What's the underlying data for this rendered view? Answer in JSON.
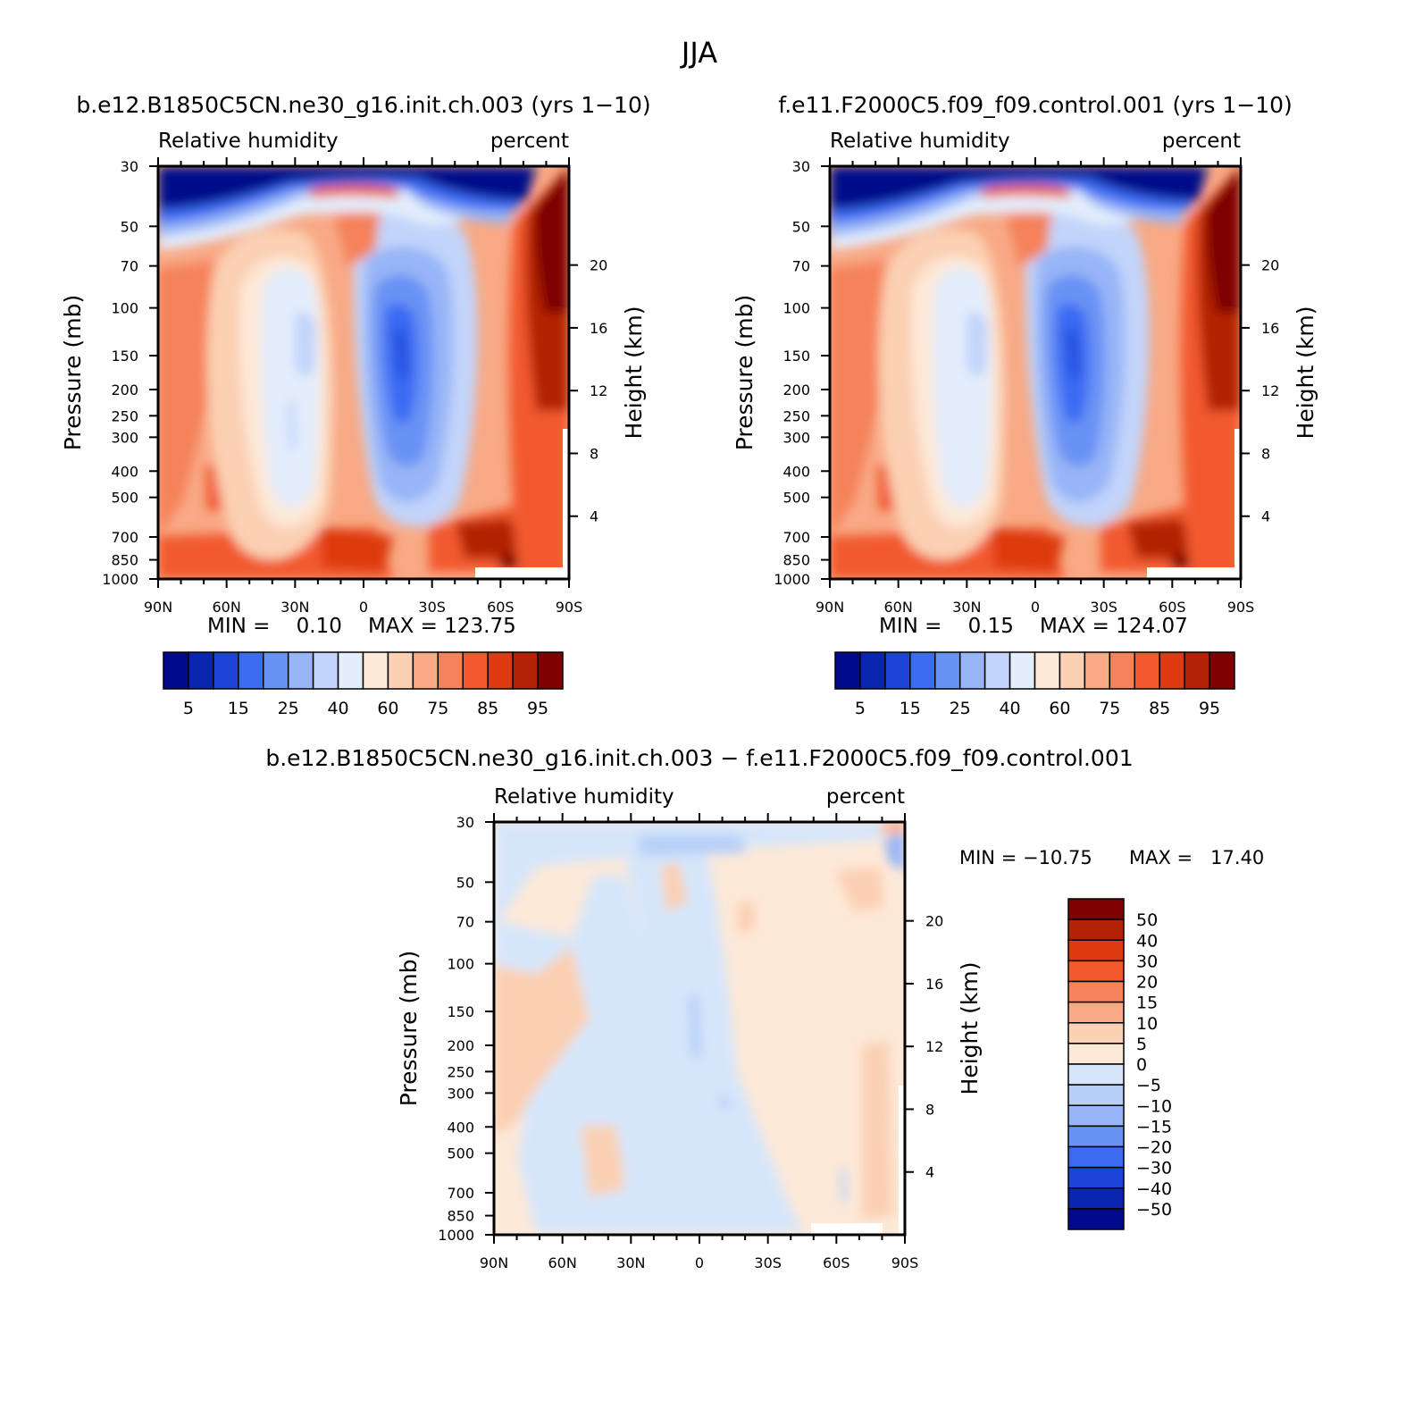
{
  "figure_title": "JJA",
  "chart_data": [
    {
      "type": "heatmap",
      "panel": "top-left",
      "title": "b.e12.B1850C5CN.ne30_g16.init.ch.003 (yrs 1−10)",
      "variable": "Relative humidity",
      "units": "percent",
      "ylabel": "Pressure (mb)",
      "y2label": "Height (km)",
      "x_ticks": [
        "90N",
        "60N",
        "30N",
        "0",
        "30S",
        "60S",
        "90S"
      ],
      "y_ticks": [
        "30",
        "50",
        "70",
        "100",
        "150",
        "200",
        "250",
        "300",
        "400",
        "500",
        "700",
        "850",
        "1000"
      ],
      "y_tick_values": [
        30,
        50,
        70,
        100,
        150,
        200,
        250,
        300,
        400,
        500,
        700,
        850,
        1000
      ],
      "y2_ticks": [
        "20",
        "16",
        "12",
        "8",
        "4"
      ],
      "y2_tick_values": [
        20,
        16,
        12,
        8,
        4
      ],
      "ylim": [
        30,
        1000
      ],
      "min_text": "MIN =    0.10",
      "max_text": "MAX = 123.75",
      "colorbar_labels": [
        "5",
        "15",
        "25",
        "40",
        "60",
        "75",
        "85",
        "95"
      ]
    },
    {
      "type": "heatmap",
      "panel": "top-right",
      "title": "f.e11.F2000C5.f09_f09.control.001 (yrs 1−10)",
      "variable": "Relative humidity",
      "units": "percent",
      "ylabel": "Pressure (mb)",
      "y2label": "Height (km)",
      "x_ticks": [
        "90N",
        "60N",
        "30N",
        "0",
        "30S",
        "60S",
        "90S"
      ],
      "y_ticks": [
        "30",
        "50",
        "70",
        "100",
        "150",
        "200",
        "250",
        "300",
        "400",
        "500",
        "700",
        "850",
        "1000"
      ],
      "y_tick_values": [
        30,
        50,
        70,
        100,
        150,
        200,
        250,
        300,
        400,
        500,
        700,
        850,
        1000
      ],
      "y2_ticks": [
        "20",
        "16",
        "12",
        "8",
        "4"
      ],
      "y2_tick_values": [
        20,
        16,
        12,
        8,
        4
      ],
      "ylim": [
        30,
        1000
      ],
      "min_text": "MIN =    0.15",
      "max_text": "MAX = 124.07",
      "colorbar_labels": [
        "5",
        "15",
        "25",
        "40",
        "60",
        "75",
        "85",
        "95"
      ]
    },
    {
      "type": "heatmap",
      "panel": "bottom",
      "title": "b.e12.B1850C5CN.ne30_g16.init.ch.003 − f.e11.F2000C5.f09_f09.control.001",
      "variable": "Relative humidity",
      "units": "percent",
      "ylabel": "Pressure (mb)",
      "y2label": "Height (km)",
      "x_ticks": [
        "90N",
        "60N",
        "30N",
        "0",
        "30S",
        "60S",
        "90S"
      ],
      "y_ticks": [
        "30",
        "50",
        "70",
        "100",
        "150",
        "200",
        "250",
        "300",
        "400",
        "500",
        "700",
        "850",
        "1000"
      ],
      "y_tick_values": [
        30,
        50,
        70,
        100,
        150,
        200,
        250,
        300,
        400,
        500,
        700,
        850,
        1000
      ],
      "y2_ticks": [
        "20",
        "16",
        "12",
        "8",
        "4"
      ],
      "y2_tick_values": [
        20,
        16,
        12,
        8,
        4
      ],
      "ylim": [
        30,
        1000
      ],
      "min_text": "MIN = −10.75",
      "max_text": "MAX =   17.40",
      "colorbar_labels": [
        "50",
        "40",
        "30",
        "20",
        "15",
        "10",
        "5",
        "0",
        "−5",
        "−10",
        "−15",
        "−20",
        "−30",
        "−40",
        "−50"
      ]
    }
  ],
  "colors": {
    "abs_palette": [
      "#000a8a",
      "#0a25b0",
      "#1a45d8",
      "#3b6bf2",
      "#6992f5",
      "#97b5f7",
      "#c2d4fa",
      "#e3edfc",
      "#fde9d8",
      "#fbd0b3",
      "#f8a985",
      "#f5825a",
      "#f25a2e",
      "#dd3a10",
      "#b32205",
      "#7e0000"
    ],
    "diff_palette": [
      "#7e0000",
      "#b32205",
      "#dd3a10",
      "#f25a2e",
      "#f5825a",
      "#f8a985",
      "#fbd0b3",
      "#fde9d8",
      "#d6e6fa",
      "#b8d0f8",
      "#97b5f7",
      "#6992f5",
      "#3b6bf2",
      "#1a45d8",
      "#0a25b0",
      "#000a8a"
    ]
  }
}
